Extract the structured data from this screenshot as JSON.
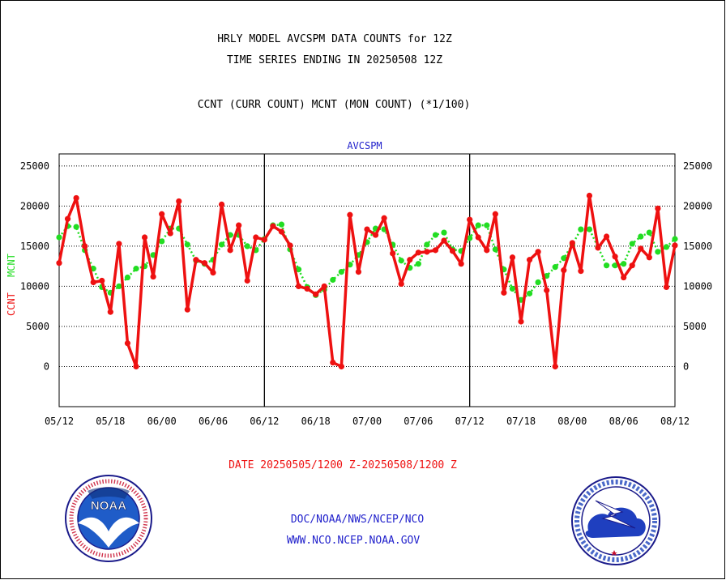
{
  "header": {
    "title_line1": "HRLY MODEL AVCSPM DATA COUNTS for 12Z",
    "title_line2": "TIME SERIES ENDING IN 20250508 12Z",
    "subtitle": "CCNT (CURR COUNT) MCNT (MON COUNT) (*1/100)"
  },
  "chart_data": {
    "type": "line",
    "title": "AVCSPM",
    "ylabel_ccnt": "CCNT",
    "ylabel_mcnt": "MCNT",
    "xlabel": "DATE 20250505/1200 Z-20250508/1200 Z",
    "ylim": [
      -5000,
      26500
    ],
    "xlim": [
      0,
      72
    ],
    "grid": true,
    "yticks": [
      0,
      5000,
      10000,
      15000,
      20000,
      25000
    ],
    "ytick_labels": [
      "0",
      "5000",
      "10000",
      "15000",
      "20000",
      "25000"
    ],
    "xticks": [
      0,
      6,
      12,
      18,
      24,
      30,
      36,
      42,
      48,
      54,
      60,
      66,
      72
    ],
    "xtick_labels": [
      "05/12",
      "05/18",
      "06/00",
      "06/06",
      "06/12",
      "06/18",
      "07/00",
      "07/06",
      "07/12",
      "07/18",
      "08/00",
      "08/06",
      "08/12"
    ],
    "day_boundaries": [
      24,
      48
    ],
    "colors": {
      "ccnt": "#ee1111",
      "mcnt": "#22dd22",
      "axis_text": "#000000",
      "title_text": "#2222cc"
    },
    "series": [
      {
        "name": "CCNT",
        "color": "#ee1111",
        "values": [
          12900,
          18400,
          21000,
          15000,
          10500,
          10700,
          6800,
          15300,
          2900,
          0,
          16100,
          11200,
          19000,
          16600,
          20600,
          7100,
          13300,
          12900,
          11700,
          20200,
          14500,
          17600,
          10700,
          16100,
          15800,
          17500,
          16800,
          15100,
          10000,
          9700,
          9000,
          10000,
          500,
          0,
          18900,
          11800,
          17100,
          16400,
          18500,
          14100,
          10300,
          13300,
          14200,
          14300,
          14500,
          15700,
          14400,
          12800,
          18300,
          16100,
          14500,
          19000,
          9200,
          13600,
          5600,
          13300,
          14300,
          9500,
          0,
          12000,
          15400,
          11900,
          21300,
          14800,
          16200,
          13700,
          11100,
          12600,
          14700,
          13600,
          19700,
          9900,
          15100
        ]
      },
      {
        "name": "MCNT",
        "color": "#22dd22",
        "values": [
          16100,
          17500,
          17400,
          14500,
          12200,
          9900,
          9200,
          10000,
          11100,
          12200,
          12500,
          13900,
          15600,
          17200,
          17200,
          15200,
          13200,
          12800,
          13300,
          15200,
          16400,
          16400,
          15000,
          14500,
          15900,
          17600,
          17700,
          14600,
          12100,
          9900,
          8900,
          9600,
          10800,
          11800,
          12700,
          13900,
          15500,
          17200,
          17100,
          15200,
          13200,
          12300,
          12800,
          15200,
          16400,
          16700,
          14600,
          14400,
          16000,
          17600,
          17600,
          14600,
          12100,
          9700,
          8300,
          9100,
          10500,
          11300,
          12400,
          13500,
          15200,
          17100,
          17100,
          14900,
          12600,
          12600,
          12800,
          15300,
          16200,
          16700,
          14300,
          14900,
          15900
        ]
      }
    ]
  },
  "footer": {
    "org_line": "DOC/NOAA/NWS/NCEP/NCO",
    "url_line": "WWW.NCO.NCEP.NOAA.GOV"
  },
  "logos": {
    "noaa": {
      "name": "noaa-seal",
      "text": "NOAA",
      "ring_text": "NATIONAL OCEANIC AND ATMOSPHERIC ADMINISTRATION · U.S. DEPARTMENT OF COMMERCE ·"
    },
    "nws": {
      "name": "nws-seal",
      "ring_text": "NATIONAL WEATHER SERVICE"
    }
  }
}
